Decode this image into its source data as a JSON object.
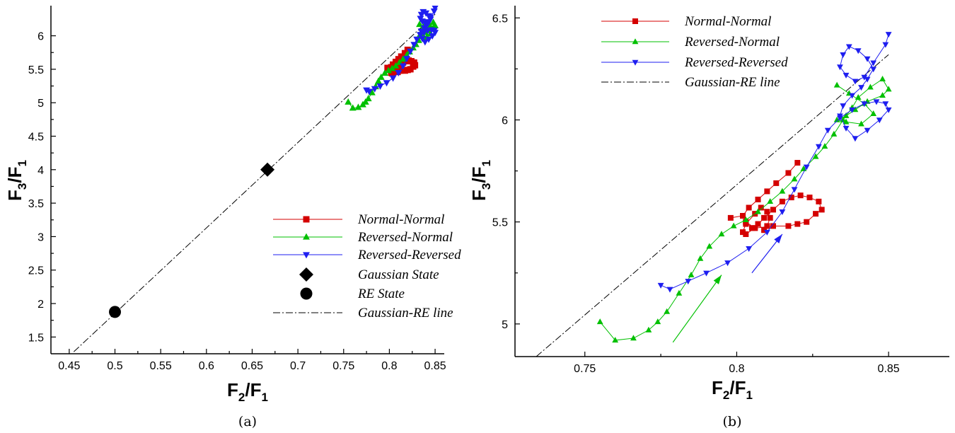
{
  "chart_data": [
    {
      "panel": "a",
      "type": "line",
      "caption": "(a)",
      "xlabel": {
        "main": "F",
        "sub1": "2",
        "sep": "/F",
        "sub2": "1"
      },
      "ylabel": {
        "main": "F",
        "sub1": "3",
        "sep": "/F",
        "sub2": "1"
      },
      "xlim": [
        0.43,
        0.86
      ],
      "ylim": [
        1.25,
        6.45
      ],
      "xticks": [
        0.45,
        0.5,
        0.55,
        0.6,
        0.65,
        0.7,
        0.75,
        0.8,
        0.85
      ],
      "xtick_labels": [
        "0.45",
        "0.5",
        "0.55",
        "0.6",
        "0.65",
        "0.7",
        "0.75",
        "0.8",
        "0.85"
      ],
      "yticks": [
        1.5,
        2,
        2.5,
        3,
        3.5,
        4,
        4.5,
        5,
        5.5,
        6
      ],
      "ytick_labels": [
        "1.5",
        "2",
        "2.5",
        "3",
        "3.5",
        "4",
        "4.5",
        "5",
        "5.5",
        "6"
      ],
      "legend_position": "lower-right",
      "legend": [
        "Normal-Normal",
        "Reversed-Normal",
        "Reversed-Reversed",
        "Gaussian State",
        "RE State",
        "Gaussian-RE line"
      ],
      "points": [
        {
          "name": "Gaussian State",
          "x": 0.6667,
          "y": 4.0,
          "marker": "diamond",
          "color": "#000000"
        },
        {
          "name": "RE State",
          "x": 0.5,
          "y": 1.875,
          "marker": "circle",
          "color": "#000000"
        }
      ],
      "reference_line": {
        "name": "Gaussian-RE line",
        "x": [
          0.455,
          0.85
        ],
        "y": [
          1.28,
          6.32
        ],
        "color": "#000000",
        "style": "dashdot"
      }
    },
    {
      "panel": "b",
      "type": "line",
      "caption": "(b)",
      "xlabel": {
        "main": "F",
        "sub1": "2",
        "sep": "/F",
        "sub2": "1"
      },
      "ylabel": {
        "main": "F",
        "sub1": "3",
        "sep": "/F",
        "sub2": "1"
      },
      "xlim": [
        0.727,
        0.87
      ],
      "ylim": [
        4.84,
        6.56
      ],
      "xticks": [
        0.75,
        0.8,
        0.85
      ],
      "xtick_labels": [
        "0.75",
        "0.8",
        "0.85"
      ],
      "yticks": [
        5,
        5.5,
        6,
        6.5
      ],
      "ytick_labels": [
        "5",
        "5.5",
        "6",
        "6.5"
      ],
      "legend_position": "top-left",
      "legend": [
        "Normal-Normal",
        "Reversed-Normal",
        "Reversed-Reversed",
        "Gaussian-RE line"
      ],
      "arrows": [
        {
          "series": "Reversed-Normal",
          "x": [
            0.779,
            0.795
          ],
          "y": [
            4.91,
            5.24
          ],
          "color": "#00c000"
        },
        {
          "series": "Reversed-Reversed",
          "x": [
            0.805,
            0.815
          ],
          "y": [
            5.25,
            5.44
          ],
          "color": "#1e1ef0"
        }
      ],
      "reference_line": {
        "name": "Gaussian-RE line",
        "x": [
          0.734,
          0.85
        ],
        "y": [
          4.84,
          6.32
        ],
        "color": "#000000",
        "style": "dashdot"
      }
    }
  ],
  "series": [
    {
      "name": "Normal-Normal",
      "color": "#d40000",
      "marker": "square",
      "x": [
        0.798,
        0.802,
        0.803,
        0.805,
        0.807,
        0.809,
        0.81,
        0.811,
        0.81,
        0.808,
        0.806,
        0.803,
        0.802,
        0.803,
        0.806,
        0.809,
        0.812,
        0.815,
        0.818,
        0.821,
        0.824,
        0.827,
        0.828,
        0.826,
        0.823,
        0.82,
        0.817,
        0.812,
        0.806,
        0.803,
        0.802,
        0.804,
        0.807,
        0.81,
        0.813,
        0.817,
        0.82
      ],
      "y": [
        5.52,
        5.53,
        5.5,
        5.47,
        5.49,
        5.46,
        5.48,
        5.52,
        5.55,
        5.57,
        5.54,
        5.49,
        5.45,
        5.44,
        5.47,
        5.52,
        5.56,
        5.6,
        5.62,
        5.63,
        5.62,
        5.6,
        5.56,
        5.54,
        5.5,
        5.49,
        5.48,
        5.48,
        5.47,
        5.5,
        5.53,
        5.57,
        5.61,
        5.65,
        5.69,
        5.74,
        5.79
      ]
    },
    {
      "name": "Reversed-Normal",
      "color": "#00c000",
      "marker": "triangle-up",
      "x": [
        0.755,
        0.76,
        0.766,
        0.771,
        0.774,
        0.777,
        0.781,
        0.785,
        0.788,
        0.791,
        0.795,
        0.799,
        0.803,
        0.807,
        0.811,
        0.815,
        0.819,
        0.822,
        0.826,
        0.829,
        0.832,
        0.835,
        0.838,
        0.84,
        0.844,
        0.848,
        0.85,
        0.848,
        0.843,
        0.839,
        0.836,
        0.833,
        0.836,
        0.841,
        0.845,
        0.842,
        0.837,
        0.833
      ],
      "y": [
        5.01,
        4.92,
        4.93,
        4.97,
        5.01,
        5.06,
        5.15,
        5.24,
        5.32,
        5.38,
        5.44,
        5.48,
        5.51,
        5.55,
        5.6,
        5.65,
        5.71,
        5.76,
        5.82,
        5.87,
        5.93,
        6.0,
        6.06,
        6.11,
        6.16,
        6.2,
        6.15,
        6.12,
        6.09,
        6.05,
        6.02,
        6.0,
        5.99,
        5.98,
        6.03,
        6.08,
        6.13,
        6.17
      ]
    },
    {
      "name": "Reversed-Reversed",
      "color": "#1e1ef0",
      "marker": "triangle-down",
      "x": [
        0.775,
        0.778,
        0.784,
        0.79,
        0.797,
        0.804,
        0.81,
        0.815,
        0.819,
        0.823,
        0.827,
        0.83,
        0.834,
        0.838,
        0.842,
        0.846,
        0.849,
        0.85,
        0.847,
        0.843,
        0.839,
        0.836,
        0.834,
        0.835,
        0.838,
        0.841,
        0.843,
        0.845,
        0.843,
        0.84,
        0.837,
        0.835,
        0.834,
        0.836,
        0.839,
        0.842,
        0.845,
        0.849,
        0.85
      ],
      "y": [
        5.19,
        5.17,
        5.21,
        5.25,
        5.3,
        5.37,
        5.45,
        5.55,
        5.66,
        5.77,
        5.87,
        5.95,
        6.01,
        6.05,
        6.08,
        6.09,
        6.08,
        6.05,
        6.0,
        5.95,
        5.91,
        5.96,
        6.02,
        6.07,
        6.12,
        6.16,
        6.2,
        6.25,
        6.3,
        6.34,
        6.36,
        6.32,
        6.26,
        6.22,
        6.19,
        6.21,
        6.28,
        6.37,
        6.42
      ]
    }
  ],
  "colors": {
    "normal_normal": "#d40000",
    "reversed_normal": "#00c000",
    "reversed_reversed": "#1e1ef0",
    "black": "#000000"
  }
}
